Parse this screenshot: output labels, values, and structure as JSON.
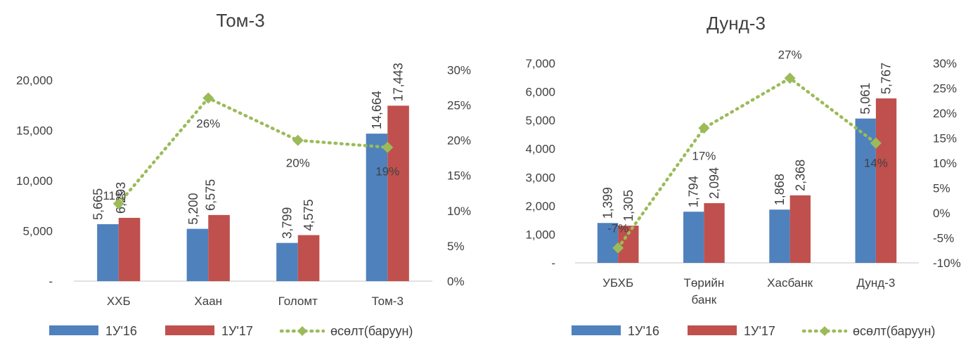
{
  "chart_data": [
    {
      "type": "bar",
      "title": "Том-3",
      "categories": [
        [
          "ХХБ"
        ],
        [
          "Хаан"
        ],
        [
          "Голомт"
        ],
        [
          "Том-3"
        ]
      ],
      "series": [
        {
          "name": "1У'16",
          "kind": "bar",
          "axis": "left",
          "color": "#4F81BD",
          "values": [
            5665,
            5200,
            3799,
            14664
          ],
          "labels": [
            "5,665",
            "5,200",
            "3,799",
            "14,664"
          ]
        },
        {
          "name": "1У'17",
          "kind": "bar",
          "axis": "left",
          "color": "#C0504D",
          "values": [
            6293,
            6575,
            4575,
            17443
          ],
          "labels": [
            "6,293",
            "6,575",
            "4,575",
            "17,443"
          ]
        },
        {
          "name": "өсөлт(баруун)",
          "kind": "line",
          "axis": "right",
          "color": "#9BBB59",
          "values": [
            11,
            26,
            20,
            19
          ],
          "labels": [
            "11%",
            "26%",
            "20%",
            "19%"
          ]
        }
      ],
      "left_axis": {
        "ylim": [
          0,
          22500
        ],
        "ticks": [
          0,
          5000,
          10000,
          15000,
          20000
        ],
        "tick_labels": [
          "-",
          "5,000",
          "10,000",
          "15,000",
          "20,000"
        ]
      },
      "right_axis": {
        "ylim": [
          0,
          32.14
        ],
        "ticks": [
          0,
          5,
          10,
          15,
          20,
          25,
          30
        ],
        "tick_labels": [
          "0%",
          "5%",
          "10%",
          "15%",
          "20%",
          "25%",
          "30%"
        ]
      },
      "legend": "bottom"
    },
    {
      "type": "bar",
      "title": "Дунд-3",
      "categories": [
        [
          "УБХБ"
        ],
        [
          "Төрийн",
          "банк"
        ],
        [
          "Хасбанк"
        ],
        [
          "Дунд-3"
        ]
      ],
      "series": [
        {
          "name": "1У'16",
          "kind": "bar",
          "axis": "left",
          "color": "#4F81BD",
          "values": [
            1399,
            1794,
            1868,
            5061
          ],
          "labels": [
            "1,399",
            "1,794",
            "1,868",
            "5,061"
          ]
        },
        {
          "name": "1У'17",
          "kind": "bar",
          "axis": "left",
          "color": "#C0504D",
          "values": [
            1305,
            2094,
            2368,
            5767
          ],
          "labels": [
            "1,305",
            "2,094",
            "2,368",
            "5,767"
          ]
        },
        {
          "name": "өсөлт(баруун)",
          "kind": "line",
          "axis": "right",
          "color": "#9BBB59",
          "values": [
            -7,
            17,
            27,
            14
          ],
          "labels": [
            "-7%",
            "17%",
            "27%",
            "14%"
          ]
        }
      ],
      "left_axis": {
        "ylim": [
          0,
          7000
        ],
        "ticks": [
          0,
          1000,
          2000,
          3000,
          4000,
          5000,
          6000,
          7000
        ],
        "tick_labels": [
          "-",
          "1,000",
          "2,000",
          "3,000",
          "4,000",
          "5,000",
          "6,000",
          "7,000"
        ]
      },
      "right_axis": {
        "ylim": [
          -10,
          30
        ],
        "ticks": [
          -10,
          -5,
          0,
          5,
          10,
          15,
          20,
          25,
          30
        ],
        "tick_labels": [
          "-10%",
          "-5%",
          "0%",
          "5%",
          "10%",
          "15%",
          "20%",
          "25%",
          "30%"
        ]
      },
      "legend": "bottom"
    }
  ]
}
